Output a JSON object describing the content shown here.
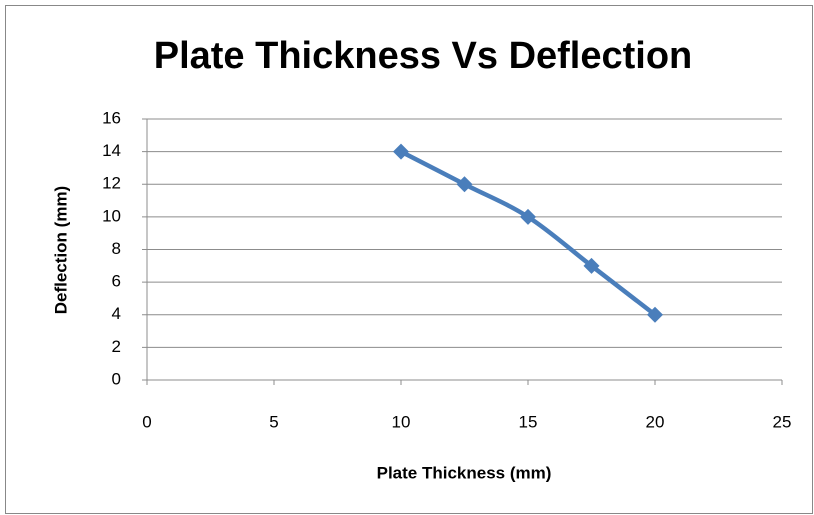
{
  "chart_data": {
    "type": "scatter",
    "title": "Plate Thickness Vs Deflection",
    "x_label": "Plate Thickness (mm)",
    "y_label": "Deflection (mm)",
    "x": [
      10,
      12.5,
      15,
      17.5,
      20
    ],
    "values": [
      14,
      12,
      10,
      7,
      4
    ],
    "color": "#4a7ebb",
    "line": true,
    "marker": "diamond",
    "xlim": [
      0,
      25
    ],
    "xticks": [
      0,
      5,
      10,
      15,
      20,
      25
    ],
    "ylim": [
      0,
      16
    ],
    "yticks": [
      0,
      2,
      4,
      6,
      8,
      10,
      12,
      14,
      16
    ],
    "grid": true
  }
}
